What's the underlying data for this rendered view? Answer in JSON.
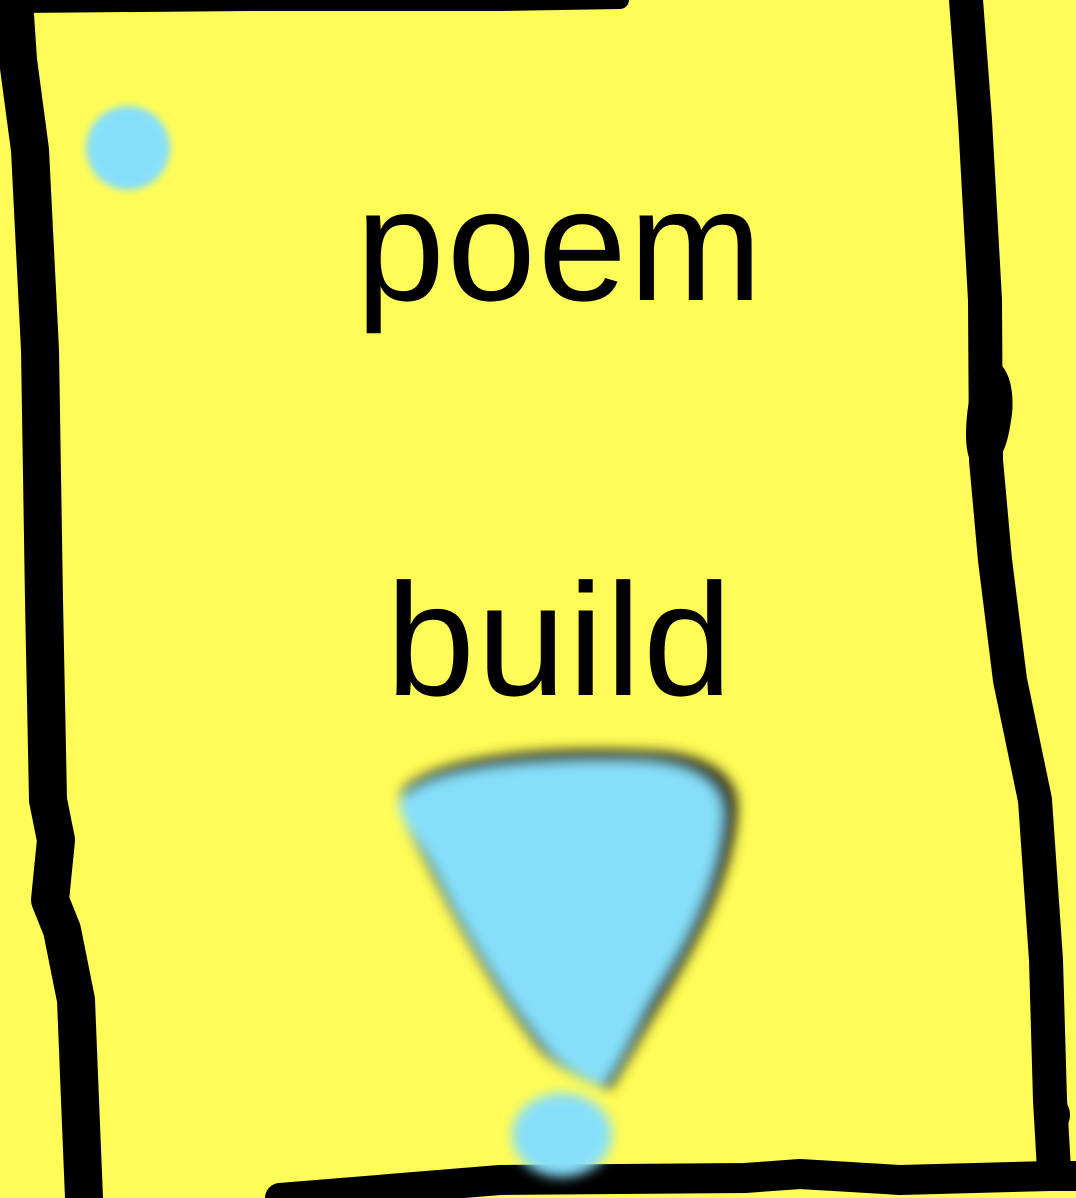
{
  "words": {
    "top": "poem",
    "bottom": "build"
  },
  "colors": {
    "background": "#fffc57",
    "ink": "#000000",
    "blob": "#86dffa"
  }
}
